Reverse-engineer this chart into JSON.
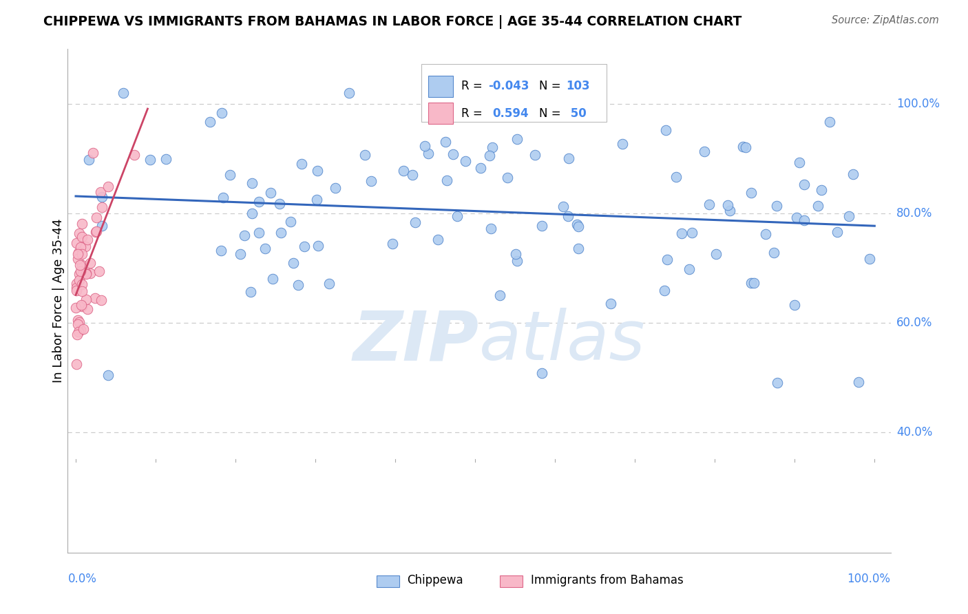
{
  "title": "CHIPPEWA VS IMMIGRANTS FROM BAHAMAS IN LABOR FORCE | AGE 35-44 CORRELATION CHART",
  "source": "Source: ZipAtlas.com",
  "ylabel": "In Labor Force | Age 35-44",
  "blue_color": "#aeccf0",
  "blue_edge": "#5588cc",
  "pink_color": "#f8b8c8",
  "pink_edge": "#dd6688",
  "trend_blue": "#3366bb",
  "trend_pink": "#cc4466",
  "legend_r1_label": "R = ",
  "legend_r1_val": "-0.043",
  "legend_n1_label": "N = ",
  "legend_n1_val": "103",
  "legend_r2_label": "R =  ",
  "legend_r2_val": "0.594",
  "legend_n2_label": "N =  ",
  "legend_n2_val": "50",
  "watermark_color": "#dce8f5",
  "grid_color": "#cccccc",
  "tick_color": "#aaaaaa",
  "right_label_color": "#4488ee",
  "y_tick_vals": [
    0.4,
    0.6,
    0.8,
    1.0
  ],
  "y_tick_labels": [
    "40.0%",
    "60.0%",
    "80.0%",
    "100.0%"
  ],
  "xlim": [
    -0.01,
    1.02
  ],
  "ylim": [
    0.18,
    1.1
  ]
}
